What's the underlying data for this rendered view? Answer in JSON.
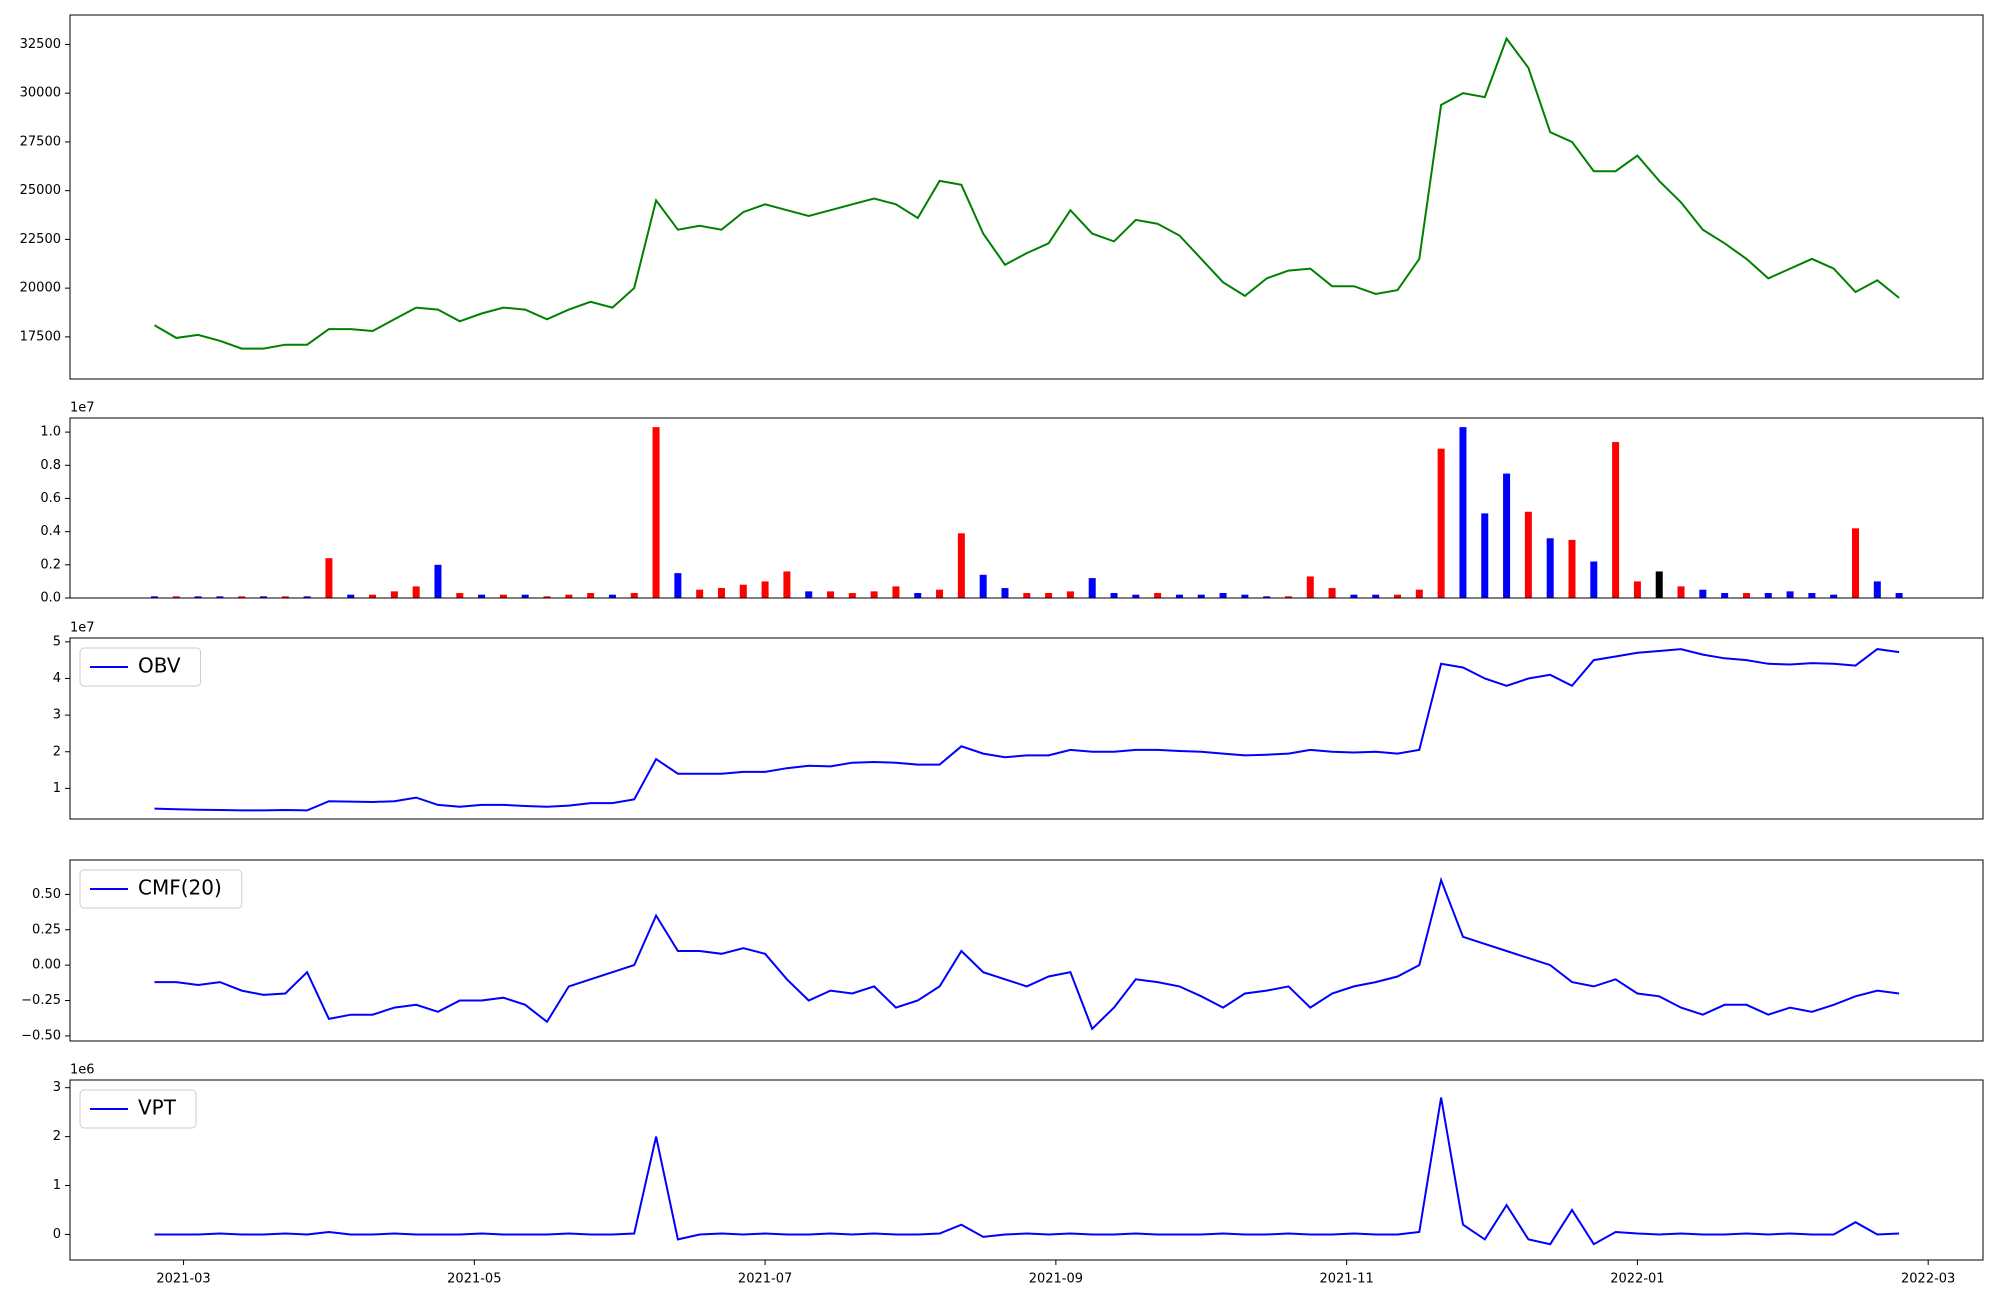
{
  "chart_data": [
    {
      "type": "line",
      "x": [
        2.8,
        2.95,
        3.1,
        3.25,
        3.4,
        3.55,
        3.7,
        3.85,
        4,
        4.15,
        4.3,
        4.45,
        4.6,
        4.75,
        4.9,
        5.05,
        5.2,
        5.35,
        5.5,
        5.65,
        5.8,
        5.95,
        6.1,
        6.25,
        6.4,
        6.55,
        6.7,
        6.85,
        7,
        7.15,
        7.3,
        7.45,
        7.6,
        7.75,
        7.9,
        8.05,
        8.2,
        8.35,
        8.5,
        8.65,
        8.8,
        8.95,
        9.1,
        9.25,
        9.4,
        9.55,
        9.7,
        9.85,
        10,
        10.15,
        10.3,
        10.45,
        10.6,
        10.75,
        10.9,
        11.05,
        11.2,
        11.35,
        11.5,
        11.65,
        11.8,
        11.95,
        12.1,
        12.25,
        12.4,
        12.55,
        12.7,
        12.85,
        13,
        13.15,
        13.3,
        13.45,
        13.6,
        13.75,
        13.9,
        14.05,
        14.2,
        14.35,
        14.5,
        14.65,
        14.8
      ],
      "series": [
        {
          "color": "green",
          "values": [
            18100,
            17450,
            17600,
            17300,
            16900,
            16900,
            17100,
            17100,
            17900,
            17900,
            17800,
            18400,
            19000,
            18900,
            18300,
            18700,
            19000,
            18900,
            18400,
            18900,
            19300,
            19000,
            20000,
            24500,
            23000,
            23200,
            23000,
            23900,
            24300,
            24000,
            23700,
            24000,
            24300,
            24600,
            24300,
            23600,
            25500,
            25300,
            22800,
            21200,
            21800,
            22300,
            24000,
            22800,
            22400,
            23500,
            23300,
            22700,
            21500,
            20300,
            19600,
            20500,
            20900,
            21000,
            20100,
            20100,
            19700,
            19900,
            21500,
            29400,
            30000,
            29800,
            32800,
            31300,
            28000,
            27500,
            26000,
            26000,
            26800,
            25500,
            24400,
            23000,
            22300,
            21500,
            20500,
            21000,
            21500,
            21000,
            19800,
            20400,
            19500
          ]
        }
      ],
      "xlim": [
        2.219,
        15.377
      ],
      "ylim": [
        15340,
        34010
      ],
      "yticks": [
        17500,
        20000,
        22500,
        25000,
        27500,
        30000,
        32500
      ]
    },
    {
      "type": "bar",
      "x": [
        2.8,
        2.95,
        3.1,
        3.25,
        3.4,
        3.55,
        3.7,
        3.85,
        4,
        4.15,
        4.3,
        4.45,
        4.6,
        4.75,
        4.9,
        5.05,
        5.2,
        5.35,
        5.5,
        5.65,
        5.8,
        5.95,
        6.1,
        6.25,
        6.4,
        6.55,
        6.7,
        6.85,
        7,
        7.15,
        7.3,
        7.45,
        7.6,
        7.75,
        7.9,
        8.05,
        8.2,
        8.35,
        8.5,
        8.65,
        8.8,
        8.95,
        9.1,
        9.25,
        9.4,
        9.55,
        9.7,
        9.85,
        10,
        10.15,
        10.3,
        10.45,
        10.6,
        10.75,
        10.9,
        11.05,
        11.2,
        11.35,
        11.5,
        11.65,
        11.8,
        11.95,
        12.1,
        12.25,
        12.4,
        12.55,
        12.7,
        12.85,
        13,
        13.15,
        13.3,
        13.45,
        13.6,
        13.75,
        13.9,
        14.05,
        14.2,
        14.35,
        14.5,
        14.65,
        14.8
      ],
      "values": [
        100000,
        100000,
        100000,
        100000,
        100000,
        100000,
        100000,
        100000,
        2400000,
        200000,
        200000,
        400000,
        700000,
        2000000,
        300000,
        200000,
        200000,
        200000,
        100000,
        200000,
        300000,
        200000,
        300000,
        10300000,
        1500000,
        500000,
        600000,
        800000,
        1000000,
        1600000,
        400000,
        400000,
        300000,
        400000,
        700000,
        300000,
        500000,
        3900000,
        1400000,
        600000,
        300000,
        300000,
        400000,
        1200000,
        300000,
        200000,
        300000,
        200000,
        200000,
        300000,
        200000,
        100000,
        100000,
        1300000,
        600000,
        200000,
        200000,
        200000,
        500000,
        9000000,
        10300000,
        5100000,
        7500000,
        5200000,
        3600000,
        3500000,
        2200000,
        9400000,
        1000000,
        1600000,
        700000,
        500000,
        300000,
        300000,
        300000,
        400000,
        300000,
        200000,
        4200000,
        1000000,
        300000
      ],
      "colors": [
        "blue",
        "red",
        "blue",
        "blue",
        "red",
        "blue",
        "red",
        "blue",
        "red",
        "blue",
        "red",
        "red",
        "red",
        "blue",
        "red",
        "blue",
        "red",
        "blue",
        "red",
        "red",
        "red",
        "blue",
        "red",
        "red",
        "blue",
        "red",
        "red",
        "red",
        "red",
        "red",
        "blue",
        "red",
        "red",
        "red",
        "red",
        "blue",
        "red",
        "red",
        "blue",
        "blue",
        "red",
        "red",
        "red",
        "blue",
        "blue",
        "blue",
        "red",
        "blue",
        "blue",
        "blue",
        "blue",
        "blue",
        "red",
        "red",
        "red",
        "blue",
        "blue",
        "red",
        "red",
        "red",
        "blue",
        "blue",
        "blue",
        "red",
        "blue",
        "red",
        "blue",
        "red",
        "red",
        "black",
        "red",
        "blue",
        "blue",
        "red",
        "blue",
        "blue",
        "blue",
        "blue",
        "red",
        "blue",
        "blue"
      ],
      "xlim": [
        2.219,
        15.377
      ],
      "ylim": [
        0,
        10850000
      ],
      "y_offset_label": "1e7",
      "yticks": [
        {
          "value": 0,
          "label": "0.0"
        },
        {
          "value": 2000000,
          "label": "0.2"
        },
        {
          "value": 4000000,
          "label": "0.4"
        },
        {
          "value": 6000000,
          "label": "0.6"
        },
        {
          "value": 8000000,
          "label": "0.8"
        },
        {
          "value": 10000000,
          "label": "1.0"
        }
      ]
    },
    {
      "type": "line",
      "x": [
        2.8,
        2.95,
        3.1,
        3.25,
        3.4,
        3.55,
        3.7,
        3.85,
        4,
        4.15,
        4.3,
        4.45,
        4.6,
        4.75,
        4.9,
        5.05,
        5.2,
        5.35,
        5.5,
        5.65,
        5.8,
        5.95,
        6.1,
        6.25,
        6.4,
        6.55,
        6.7,
        6.85,
        7,
        7.15,
        7.3,
        7.45,
        7.6,
        7.75,
        7.9,
        8.05,
        8.2,
        8.35,
        8.5,
        8.65,
        8.8,
        8.95,
        9.1,
        9.25,
        9.4,
        9.55,
        9.7,
        9.85,
        10,
        10.15,
        10.3,
        10.45,
        10.6,
        10.75,
        10.9,
        11.05,
        11.2,
        11.35,
        11.5,
        11.65,
        11.8,
        11.95,
        12.1,
        12.25,
        12.4,
        12.55,
        12.7,
        12.85,
        13,
        13.15,
        13.3,
        13.45,
        13.6,
        13.75,
        13.9,
        14.05,
        14.2,
        14.35,
        14.5,
        14.65,
        14.8
      ],
      "series": [
        {
          "name": "OBV",
          "color": "blue",
          "values": [
            4500000,
            4300000,
            4200000,
            4100000,
            4000000,
            4000000,
            4100000,
            4000000,
            6500000,
            6400000,
            6300000,
            6500000,
            7500000,
            5500000,
            5000000,
            5500000,
            5500000,
            5200000,
            5000000,
            5300000,
            6000000,
            6000000,
            7000000,
            18000000,
            14000000,
            14000000,
            14000000,
            14500000,
            14500000,
            15500000,
            16200000,
            16000000,
            17000000,
            17200000,
            17000000,
            16500000,
            16500000,
            21500000,
            19500000,
            18500000,
            19000000,
            19000000,
            20500000,
            20000000,
            20000000,
            20500000,
            20500000,
            20200000,
            20000000,
            19500000,
            19000000,
            19200000,
            19500000,
            20500000,
            20000000,
            19800000,
            20000000,
            19500000,
            20500000,
            44000000,
            43000000,
            40000000,
            38000000,
            40000000,
            41000000,
            38000000,
            45000000,
            46000000,
            47000000,
            47500000,
            48000000,
            46500000,
            45500000,
            45000000,
            44000000,
            43800000,
            44200000,
            44000000,
            43500000,
            48000000,
            47200000
          ]
        }
      ],
      "xlim": [
        2.219,
        15.377
      ],
      "ylim": [
        1650000,
        51040000
      ],
      "y_offset_label": "1e7",
      "legend": "upper left",
      "yticks": [
        {
          "value": 10000000,
          "label": "1"
        },
        {
          "value": 20000000,
          "label": "2"
        },
        {
          "value": 30000000,
          "label": "3"
        },
        {
          "value": 40000000,
          "label": "4"
        },
        {
          "value": 50000000,
          "label": "5"
        }
      ]
    },
    {
      "type": "line",
      "x": [
        2.8,
        2.95,
        3.1,
        3.25,
        3.4,
        3.55,
        3.7,
        3.85,
        4,
        4.15,
        4.3,
        4.45,
        4.6,
        4.75,
        4.9,
        5.05,
        5.2,
        5.35,
        5.5,
        5.65,
        5.8,
        5.95,
        6.1,
        6.25,
        6.4,
        6.55,
        6.7,
        6.85,
        7,
        7.15,
        7.3,
        7.45,
        7.6,
        7.75,
        7.9,
        8.05,
        8.2,
        8.35,
        8.5,
        8.65,
        8.8,
        8.95,
        9.1,
        9.25,
        9.4,
        9.55,
        9.7,
        9.85,
        10,
        10.15,
        10.3,
        10.45,
        10.6,
        10.75,
        10.9,
        11.05,
        11.2,
        11.35,
        11.5,
        11.65,
        11.8,
        11.95,
        12.1,
        12.25,
        12.4,
        12.55,
        12.7,
        12.85,
        13,
        13.15,
        13.3,
        13.45,
        13.6,
        13.75,
        13.9,
        14.05,
        14.2,
        14.35,
        14.5,
        14.65,
        14.8
      ],
      "series": [
        {
          "name": "CMF(20)",
          "color": "blue",
          "values": [
            -0.12,
            -0.12,
            -0.14,
            -0.12,
            -0.18,
            -0.21,
            -0.2,
            -0.05,
            -0.38,
            -0.35,
            -0.35,
            -0.3,
            -0.28,
            -0.33,
            -0.25,
            -0.25,
            -0.23,
            -0.28,
            -0.4,
            -0.15,
            -0.1,
            -0.05,
            0,
            0.35,
            0.1,
            0.1,
            0.08,
            0.12,
            0.08,
            -0.1,
            -0.25,
            -0.18,
            -0.2,
            -0.15,
            -0.3,
            -0.25,
            -0.15,
            0.1,
            -0.05,
            -0.1,
            -0.15,
            -0.08,
            -0.05,
            -0.45,
            -0.3,
            -0.1,
            -0.12,
            -0.15,
            -0.22,
            -0.3,
            -0.2,
            -0.18,
            -0.15,
            -0.3,
            -0.2,
            -0.15,
            -0.12,
            -0.08,
            0,
            0.6,
            0.2,
            0.15,
            0.1,
            0.05,
            0,
            -0.12,
            -0.15,
            -0.1,
            -0.2,
            -0.22,
            -0.3,
            -0.35,
            -0.28,
            -0.28,
            -0.35,
            -0.3,
            -0.33,
            -0.28,
            -0.22,
            -0.18,
            -0.2
          ]
        }
      ],
      "xlim": [
        2.219,
        15.377
      ],
      "ylim": [
        -0.536,
        0.743
      ],
      "legend": "upper left",
      "yticks": [
        {
          "value": -0.5,
          "label": "−0.50"
        },
        {
          "value": -0.25,
          "label": "−0.25"
        },
        {
          "value": 0,
          "label": "0.00"
        },
        {
          "value": 0.25,
          "label": "0.25"
        },
        {
          "value": 0.5,
          "label": "0.50"
        }
      ]
    },
    {
      "type": "line",
      "x": [
        2.8,
        2.95,
        3.1,
        3.25,
        3.4,
        3.55,
        3.7,
        3.85,
        4,
        4.15,
        4.3,
        4.45,
        4.6,
        4.75,
        4.9,
        5.05,
        5.2,
        5.35,
        5.5,
        5.65,
        5.8,
        5.95,
        6.1,
        6.25,
        6.4,
        6.55,
        6.7,
        6.85,
        7,
        7.15,
        7.3,
        7.45,
        7.6,
        7.75,
        7.9,
        8.05,
        8.2,
        8.35,
        8.5,
        8.65,
        8.8,
        8.95,
        9.1,
        9.25,
        9.4,
        9.55,
        9.7,
        9.85,
        10,
        10.15,
        10.3,
        10.45,
        10.6,
        10.75,
        10.9,
        11.05,
        11.2,
        11.35,
        11.5,
        11.65,
        11.8,
        11.95,
        12.1,
        12.25,
        12.4,
        12.55,
        12.7,
        12.85,
        13,
        13.15,
        13.3,
        13.45,
        13.6,
        13.75,
        13.9,
        14.05,
        14.2,
        14.35,
        14.5,
        14.65,
        14.8
      ],
      "series": [
        {
          "name": "VPT",
          "color": "blue",
          "values": [
            0,
            0,
            0,
            20000,
            0,
            0,
            20000,
            0,
            50000,
            0,
            0,
            20000,
            0,
            0,
            0,
            20000,
            0,
            0,
            0,
            20000,
            0,
            0,
            20000,
            2000000,
            -100000,
            0,
            20000,
            0,
            20000,
            0,
            0,
            20000,
            0,
            20000,
            0,
            0,
            20000,
            200000,
            -50000,
            0,
            20000,
            0,
            20000,
            0,
            0,
            20000,
            0,
            0,
            0,
            20000,
            0,
            0,
            20000,
            0,
            0,
            20000,
            0,
            0,
            50000,
            2800000,
            200000,
            -100000,
            600000,
            -100000,
            -200000,
            500000,
            -200000,
            50000,
            20000,
            0,
            20000,
            0,
            0,
            20000,
            0,
            20000,
            0,
            0,
            250000,
            0,
            20000
          ]
        }
      ],
      "xlim": [
        2.219,
        15.377
      ],
      "ylim": [
        -522000,
        3157000
      ],
      "y_offset_label": "1e6",
      "legend": "upper left",
      "yticks": [
        {
          "value": 0,
          "label": "0"
        },
        {
          "value": 1000000,
          "label": "1"
        },
        {
          "value": 2000000,
          "label": "2"
        },
        {
          "value": 3000000,
          "label": "3"
        }
      ],
      "xticks": [
        {
          "value": 3,
          "label": "2021-03"
        },
        {
          "value": 5,
          "label": "2021-05"
        },
        {
          "value": 7,
          "label": "2021-07"
        },
        {
          "value": 9,
          "label": "2021-09"
        },
        {
          "value": 11,
          "label": "2021-11"
        },
        {
          "value": 13,
          "label": "2022-01"
        },
        {
          "value": 15,
          "label": "2022-03"
        }
      ]
    }
  ]
}
